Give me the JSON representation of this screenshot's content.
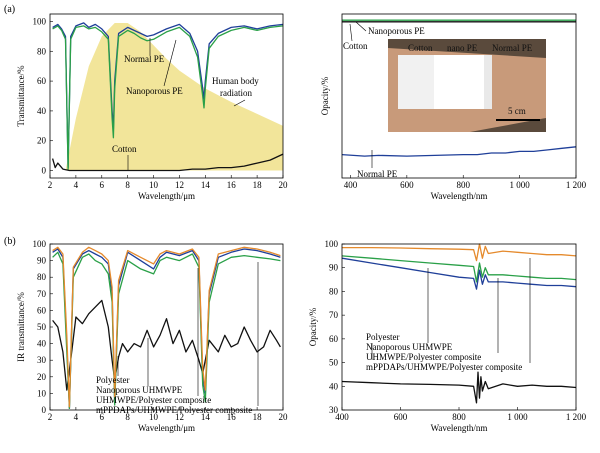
{
  "figure": {
    "panel_labels": [
      "(a)",
      "(b)"
    ]
  },
  "chart_data": [
    {
      "id": "a_left",
      "type": "line",
      "xlabel": "Wavelength/μm",
      "ylabel": "Transmittance/%",
      "xlim": [
        2,
        20
      ],
      "ylim": [
        -5,
        105
      ],
      "xticks": [
        2,
        4,
        6,
        8,
        10,
        12,
        14,
        16,
        18,
        20
      ],
      "yticks": [
        0,
        20,
        40,
        60,
        80,
        100
      ],
      "area": {
        "name": "Human body radiation",
        "color": "#f2e59a",
        "x": [
          3.2,
          4,
          5,
          6,
          7,
          8,
          9,
          10,
          11,
          12,
          14,
          16,
          18,
          20
        ],
        "y": [
          0,
          35,
          70,
          90,
          99,
          99,
          93,
          84,
          75,
          67,
          55,
          46,
          38,
          30
        ]
      },
      "series": [
        {
          "name": "Normal PE",
          "color": "#1f3f99",
          "x": [
            2.2,
            2.6,
            2.9,
            3.2,
            3.4,
            3.6,
            4,
            4.6,
            5,
            5.5,
            6,
            6.5,
            6.8,
            6.9,
            7,
            7.3,
            8,
            8.5,
            9,
            9.5,
            10,
            11,
            12,
            12.8,
            13.4,
            13.8,
            13.9,
            14,
            14.3,
            15,
            16,
            17,
            18,
            19,
            20
          ],
          "y": [
            96,
            98,
            95,
            90,
            2,
            90,
            97,
            99,
            96,
            98,
            95,
            90,
            40,
            28,
            60,
            92,
            96,
            94,
            92,
            90,
            91,
            95,
            98,
            92,
            80,
            55,
            48,
            60,
            85,
            92,
            96,
            97,
            95,
            97,
            98
          ]
        },
        {
          "name": "Nanoporous PE",
          "color": "#2aa048",
          "x": [
            2.2,
            2.6,
            2.9,
            3.2,
            3.4,
            3.6,
            4,
            4.6,
            5,
            5.5,
            6,
            6.5,
            6.8,
            6.9,
            7,
            7.3,
            8,
            8.5,
            9,
            9.5,
            10,
            11,
            12,
            12.8,
            13.4,
            13.8,
            13.9,
            14,
            14.3,
            15,
            16,
            17,
            18,
            19,
            20
          ],
          "y": [
            95,
            97,
            94,
            88,
            1,
            88,
            96,
            97,
            95,
            96,
            93,
            88,
            35,
            22,
            55,
            90,
            94,
            92,
            89,
            87,
            88,
            93,
            96,
            90,
            76,
            50,
            42,
            55,
            82,
            90,
            94,
            96,
            94,
            96,
            97
          ]
        },
        {
          "name": "Cotton",
          "color": "#111111",
          "x": [
            2.2,
            2.4,
            2.6,
            3,
            3.5,
            4,
            5,
            6,
            7,
            8,
            9,
            10,
            11,
            12,
            13,
            14,
            15,
            16,
            17,
            18,
            19,
            20
          ],
          "y": [
            8,
            2,
            5,
            1,
            0,
            0,
            0,
            0,
            0,
            0,
            0,
            0,
            0,
            0,
            1,
            1,
            2,
            2,
            3,
            5,
            7,
            11
          ]
        }
      ],
      "annotations": [
        "Normal PE",
        "Nanoporous PE",
        "Human body",
        "radiation",
        "Cotton"
      ]
    },
    {
      "id": "a_right",
      "type": "line",
      "xlabel": "Wavelength/nm",
      "ylabel": "Opacity/%",
      "xlim": [
        370,
        1200
      ],
      "ylim": [
        0,
        105
      ],
      "xticks": [
        400,
        600,
        800,
        1000,
        1200
      ],
      "xtick_labels": [
        "400",
        "600",
        "800",
        "1 000",
        "1 200"
      ],
      "series": [
        {
          "name": "Cotton",
          "color": "#111111",
          "x": [
            370,
            600,
            800,
            1000,
            1200
          ],
          "y": [
            100,
            100,
            100,
            100,
            100
          ]
        },
        {
          "name": "Nanoporous PE",
          "color": "#2aa048",
          "x": [
            370,
            600,
            800,
            1000,
            1200
          ],
          "y": [
            101,
            101,
            101,
            101,
            101
          ]
        },
        {
          "name": "Normal PE",
          "color": "#1f3f99",
          "x": [
            370,
            450,
            500,
            600,
            700,
            800,
            850,
            900,
            950,
            1000,
            1050,
            1100,
            1150,
            1200
          ],
          "y": [
            15,
            14,
            14.5,
            14,
            14.5,
            15,
            15,
            16,
            16,
            17,
            17,
            18,
            19,
            20
          ]
        }
      ],
      "annotations": [
        "Nanoporous PE",
        "Cotton",
        "Normal PE"
      ],
      "inset": {
        "labels": [
          "Cotton",
          "nano PE",
          "Normal PE"
        ],
        "scale_bar": "5 cm"
      }
    },
    {
      "id": "b_left",
      "type": "line",
      "xlabel": "Wavelength/μm",
      "ylabel": "IR transmittance/%",
      "xlim": [
        2,
        20
      ],
      "ylim": [
        0,
        100
      ],
      "xticks": [
        2,
        4,
        6,
        8,
        10,
        12,
        14,
        16,
        18,
        20
      ],
      "yticks": [
        0,
        10,
        20,
        30,
        40,
        50,
        60,
        70,
        80,
        90,
        100
      ],
      "series": [
        {
          "name": "Polyester",
          "color": "#111111",
          "x": [
            2.2,
            2.6,
            3,
            3.3,
            3.6,
            4,
            4.5,
            5,
            5.5,
            6,
            6.5,
            6.8,
            7,
            7.3,
            7.6,
            8,
            8.5,
            9,
            9.5,
            10,
            10.5,
            11,
            11.5,
            12,
            12.5,
            13,
            13.5,
            13.8,
            14,
            14.3,
            15,
            15.5,
            16,
            16.5,
            17,
            17.5,
            18,
            18.5,
            19,
            19.5,
            19.8
          ],
          "y": [
            54,
            50,
            35,
            12,
            30,
            56,
            52,
            58,
            62,
            66,
            50,
            30,
            18,
            32,
            40,
            35,
            40,
            38,
            48,
            38,
            45,
            55,
            40,
            48,
            35,
            42,
            30,
            22,
            30,
            42,
            35,
            45,
            38,
            40,
            50,
            42,
            35,
            38,
            48,
            42,
            38
          ]
        },
        {
          "name": "Nanoporous UHMWPE",
          "color": "#1f3f99",
          "x": [
            2.2,
            2.6,
            3,
            3.3,
            3.5,
            3.8,
            4.5,
            5,
            5.5,
            6,
            6.5,
            6.8,
            7,
            7.3,
            8,
            9,
            10,
            10.5,
            11,
            12,
            13,
            13.5,
            13.8,
            14,
            14.3,
            15,
            16,
            17,
            18,
            19,
            19.8
          ],
          "y": [
            95,
            97,
            92,
            40,
            1,
            85,
            94,
            96,
            94,
            92,
            88,
            70,
            5,
            75,
            95,
            90,
            85,
            92,
            95,
            93,
            96,
            90,
            20,
            10,
            70,
            92,
            95,
            97,
            96,
            94,
            92
          ]
        },
        {
          "name": "UHMWPE/Polyester composite",
          "color": "#2aa048",
          "x": [
            2.2,
            2.6,
            3,
            3.3,
            3.5,
            3.8,
            4.5,
            5,
            5.5,
            6,
            6.5,
            6.8,
            7,
            7.3,
            8,
            9,
            10,
            10.5,
            11,
            12,
            13,
            13.5,
            13.8,
            14,
            14.3,
            15,
            16,
            17,
            18,
            19,
            19.8
          ],
          "y": [
            92,
            95,
            88,
            35,
            1,
            80,
            92,
            94,
            90,
            88,
            82,
            65,
            3,
            70,
            90,
            85,
            82,
            90,
            92,
            90,
            94,
            86,
            15,
            5,
            65,
            88,
            92,
            93,
            92,
            91,
            90
          ]
        },
        {
          "name": "mPPDAPs/UHMWPE/Polyester composite",
          "color": "#e58a2c",
          "x": [
            2.2,
            2.6,
            3,
            3.3,
            3.5,
            3.8,
            4.5,
            5,
            5.5,
            6,
            6.5,
            6.8,
            7,
            7.3,
            8,
            9,
            10,
            10.5,
            11,
            12,
            13,
            13.5,
            13.8,
            14,
            14.3,
            15,
            16,
            17,
            18,
            19,
            19.8
          ],
          "y": [
            96,
            98,
            94,
            45,
            2,
            86,
            95,
            98,
            96,
            94,
            90,
            74,
            8,
            78,
            96,
            92,
            88,
            94,
            96,
            94,
            97,
            92,
            25,
            12,
            72,
            94,
            96,
            98,
            97,
            95,
            93
          ]
        }
      ],
      "annotations": [
        "Polyester",
        "Nanoporous UHMWPE",
        "UHMWPE/Polyester composite",
        "mPPDAPs/UHMWPE/Polyester composite"
      ]
    },
    {
      "id": "b_right",
      "type": "line",
      "xlabel": "Wavelength/nm",
      "ylabel": "Opacity/%",
      "xlim": [
        400,
        1200
      ],
      "ylim": [
        30,
        100
      ],
      "xticks": [
        400,
        600,
        800,
        1000,
        1200
      ],
      "xtick_labels": [
        "400",
        "600",
        "800",
        "1 000",
        "1 200"
      ],
      "yticks": [
        30,
        40,
        50,
        60,
        70,
        80,
        90,
        100
      ],
      "series": [
        {
          "name": "mPPDAPs/UHMWPE/Polyester composite",
          "color": "#e58a2c",
          "x": [
            400,
            500,
            600,
            700,
            800,
            850,
            860,
            870,
            880,
            890,
            900,
            950,
            1000,
            1050,
            1100,
            1150,
            1200
          ],
          "y": [
            98.5,
            98.5,
            98.3,
            98,
            97.8,
            97.6,
            93,
            100,
            94,
            99,
            96,
            97,
            96.5,
            96,
            95.5,
            95.5,
            95
          ]
        },
        {
          "name": "UHMWPE/Polyester composite",
          "color": "#2aa048",
          "x": [
            400,
            500,
            600,
            700,
            800,
            850,
            860,
            870,
            880,
            890,
            900,
            950,
            1000,
            1050,
            1100,
            1150,
            1200
          ],
          "y": [
            95,
            94,
            93,
            92,
            91,
            90.5,
            84,
            92,
            86,
            90,
            87,
            87,
            86.5,
            86,
            85.5,
            85.5,
            85
          ]
        },
        {
          "name": "Nanoporous UHMWPE",
          "color": "#1f3f99",
          "x": [
            400,
            500,
            600,
            700,
            800,
            850,
            860,
            870,
            880,
            890,
            900,
            950,
            1000,
            1050,
            1100,
            1150,
            1200
          ],
          "y": [
            94,
            92,
            90,
            88,
            86,
            85.5,
            81,
            89,
            83,
            87,
            84,
            84,
            83.5,
            83,
            82.5,
            82.5,
            82
          ]
        },
        {
          "name": "Polyester",
          "color": "#111111",
          "x": [
            400,
            500,
            600,
            700,
            800,
            850,
            860,
            865,
            870,
            875,
            880,
            890,
            900,
            950,
            1000,
            1050,
            1100,
            1150,
            1200
          ],
          "y": [
            42,
            41.5,
            41,
            40.8,
            40.5,
            40,
            33,
            46,
            35,
            44,
            38,
            42,
            39,
            41,
            40,
            40.5,
            40,
            40,
            39.5
          ]
        }
      ],
      "annotations": [
        "Polyester",
        "Nanoporous UHMWPE",
        "UHMWPE/Polyester composite",
        "mPPDAPs/UHMWPE/Polyester composite"
      ]
    }
  ]
}
